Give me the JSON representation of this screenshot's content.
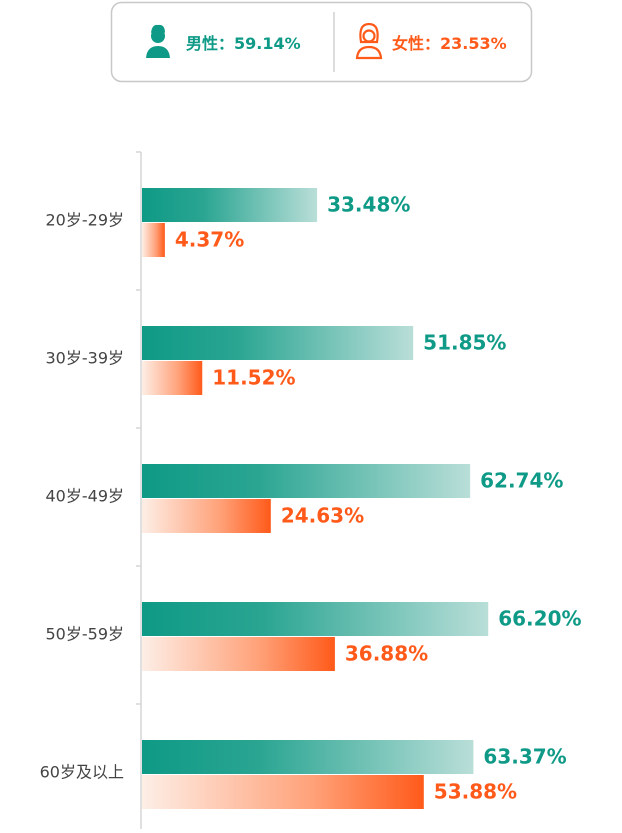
{
  "chart_data": {
    "type": "bar",
    "orientation": "horizontal",
    "categories": [
      "20岁-29岁",
      "30岁-39岁",
      "40岁-49岁",
      "50岁-59岁",
      "60岁及以上"
    ],
    "legend_separator": "：",
    "series": [
      {
        "name": "男性",
        "color": "#0e9a86",
        "legend_value": 59.14,
        "legend_value_label": "59.14%",
        "values": [
          33.48,
          51.85,
          62.74,
          66.2,
          63.37
        ],
        "value_labels": [
          "33.48%",
          "51.85%",
          "62.74%",
          "66.20%",
          "63.37%"
        ]
      },
      {
        "name": "女性",
        "color": "#ff5a1a",
        "legend_value": 23.53,
        "legend_value_label": "23.53%",
        "values": [
          4.37,
          11.52,
          24.63,
          36.88,
          53.88
        ],
        "value_labels": [
          "4.37%",
          "11.52%",
          "24.63%",
          "36.88%",
          "53.88%"
        ]
      }
    ]
  }
}
